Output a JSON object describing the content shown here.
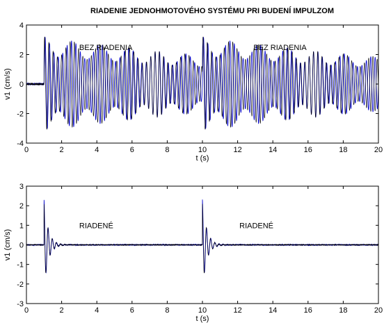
{
  "chart_data": {
    "title": "RIADENIE JEDNOHMOTOVÉHO SYSTÉMU PRI BUDENÍ IMPULZOM",
    "plots": [
      {
        "type": "line",
        "xlabel": "t (s)",
        "ylabel": "v1 (cm/s)",
        "xlim": [
          0,
          20
        ],
        "ylim": [
          -4,
          4
        ],
        "xticks": [
          0,
          2,
          4,
          6,
          8,
          10,
          12,
          14,
          16,
          18,
          20
        ],
        "yticks": [
          -4,
          -2,
          0,
          2,
          4
        ],
        "annotations": [
          {
            "text": "BEZ  RIADENIA",
            "x": 3.0,
            "y": 2.5
          },
          {
            "text": "BEZ  RIADENIA",
            "x": 12.9,
            "y": 2.5
          }
        ],
        "series": [
          {
            "color": "#0000cc",
            "impulses": [
              1.0,
              10.0
            ],
            "peak_amplitude": 3.2,
            "response": "beating"
          },
          {
            "color": "#000000",
            "impulses": [
              1.0,
              10.0
            ],
            "peak_amplitude": 3.2,
            "response": "beating"
          }
        ]
      },
      {
        "type": "line",
        "xlabel": "t (s)",
        "ylabel": "v1 (cm/s)",
        "xlim": [
          0,
          20
        ],
        "ylim": [
          -3,
          3
        ],
        "xticks": [
          0,
          2,
          4,
          6,
          8,
          10,
          12,
          14,
          16,
          18,
          20
        ],
        "yticks": [
          -3,
          -2,
          -1,
          0,
          1,
          2,
          3
        ],
        "annotations": [
          {
            "text": "RIADENÉ",
            "x": 3.0,
            "y": 1.0
          },
          {
            "text": "RIADENÉ",
            "x": 12.1,
            "y": 1.0
          }
        ],
        "series": [
          {
            "color": "#0000cc",
            "impulses": [
              1.0,
              10.0
            ],
            "peak_amplitude": 2.3,
            "response": "damped"
          },
          {
            "color": "#000000",
            "impulses": [
              1.0,
              10.0
            ],
            "peak_amplitude": 2.3,
            "response": "damped"
          }
        ]
      }
    ]
  }
}
